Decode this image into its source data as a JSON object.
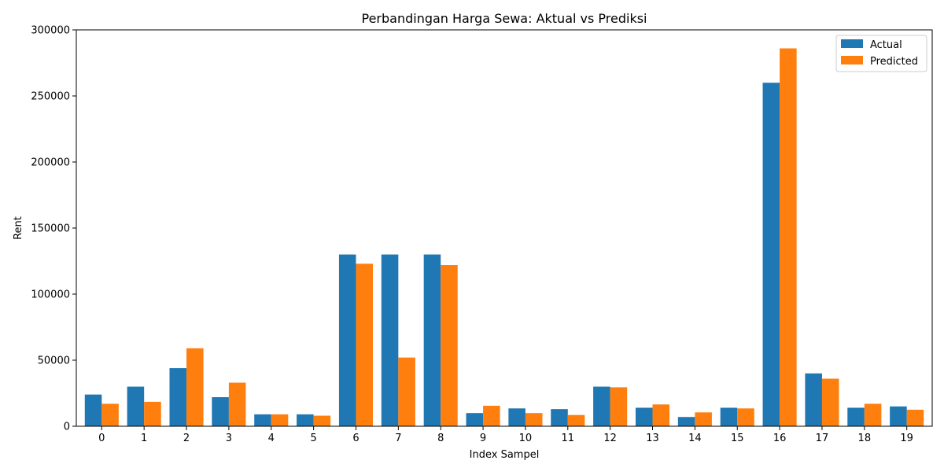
{
  "chart_data": {
    "type": "bar",
    "title": "Perbandingan Harga Sewa: Aktual vs Prediksi",
    "xlabel": "Index Sampel",
    "ylabel": "Rent",
    "categories": [
      "0",
      "1",
      "2",
      "3",
      "4",
      "5",
      "6",
      "7",
      "8",
      "9",
      "10",
      "11",
      "12",
      "13",
      "14",
      "15",
      "16",
      "17",
      "18",
      "19"
    ],
    "ylim": [
      0,
      300000
    ],
    "yticks": [
      0,
      50000,
      100000,
      150000,
      200000,
      250000,
      300000
    ],
    "ytick_labels": [
      "0",
      "50000",
      "100000",
      "150000",
      "200000",
      "250000",
      "300000"
    ],
    "legend_position": "top-right",
    "grid": false,
    "series": [
      {
        "name": "Actual",
        "color": "#1f77b4",
        "values": [
          24000,
          30000,
          44000,
          22000,
          9000,
          9000,
          130000,
          130000,
          130000,
          10000,
          13500,
          13000,
          30000,
          14000,
          7000,
          14000,
          260000,
          40000,
          14000,
          15000
        ]
      },
      {
        "name": "Predicted",
        "color": "#ff7f0e",
        "values": [
          17000,
          18500,
          59000,
          33000,
          9000,
          8000,
          123000,
          52000,
          122000,
          15500,
          10000,
          8500,
          29500,
          16500,
          10500,
          13500,
          286000,
          36000,
          17000,
          12500
        ]
      }
    ]
  }
}
